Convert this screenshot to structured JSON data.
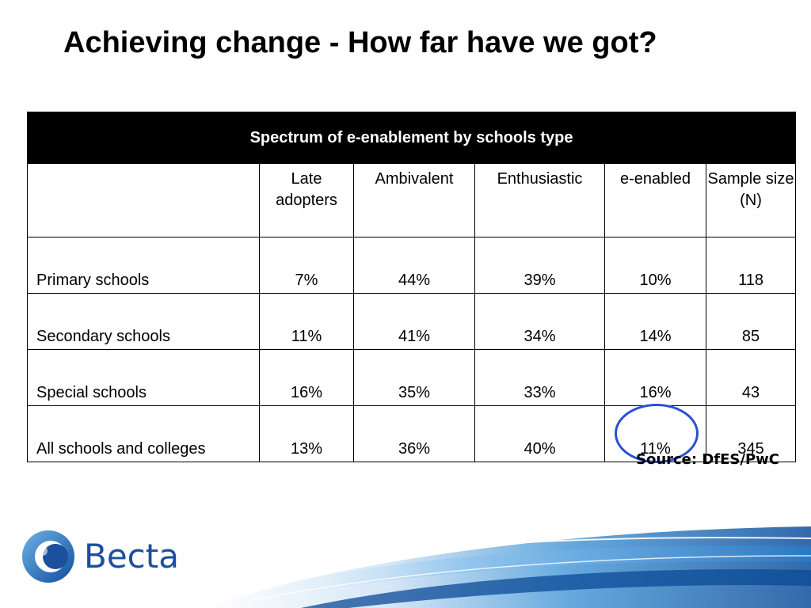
{
  "title": "Achieving change - How far have we got?",
  "table": {
    "caption": "Spectrum of e-enablement by schools type",
    "columns": [
      "",
      "Late adopters",
      "Ambivalent",
      "Enthusiastic",
      "e-enabled",
      "Sample size (N)"
    ],
    "rows": [
      {
        "label": "Primary schools",
        "cells": [
          "7%",
          "44%",
          "39%",
          "10%",
          "118"
        ]
      },
      {
        "label": "Secondary schools",
        "cells": [
          "11%",
          "41%",
          "34%",
          "14%",
          "85"
        ]
      },
      {
        "label": "Special schools",
        "cells": [
          "16%",
          "35%",
          "33%",
          "16%",
          "43"
        ]
      },
      {
        "label": "All schools and colleges",
        "cells": [
          "13%",
          "36%",
          "40%",
          "11%",
          "345"
        ]
      }
    ],
    "highlight_color": "#2a4fd6"
  },
  "source": "Source: DfES/PwC",
  "logo": {
    "text": "Becta",
    "color": "#1c4f9c"
  }
}
